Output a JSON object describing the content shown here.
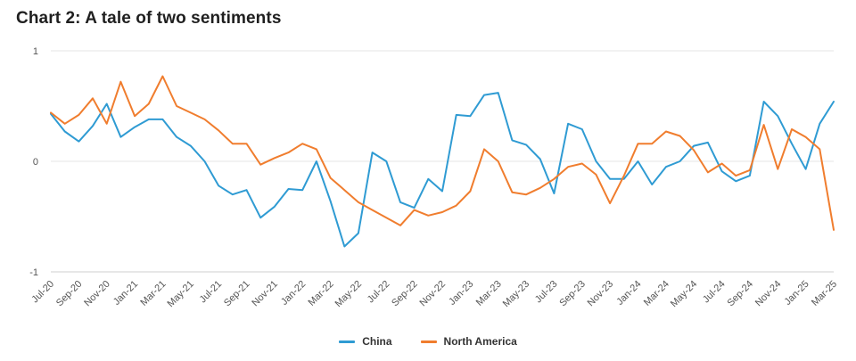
{
  "title": "Chart 2: A tale of two sentiments",
  "chart_data": {
    "type": "line",
    "title": "Chart 2: A tale of two sentiments",
    "xlabel": "",
    "ylabel": "",
    "ylim": [
      -1,
      1
    ],
    "yticks": [
      "1",
      "0",
      "-1"
    ],
    "ytick_values": [
      1,
      0,
      -1
    ],
    "grid": "horizontal",
    "legend_position": "bottom",
    "x": [
      "Jul-20",
      "Aug-20",
      "Sep-20",
      "Oct-20",
      "Nov-20",
      "Dec-20",
      "Jan-21",
      "Feb-21",
      "Mar-21",
      "Apr-21",
      "May-21",
      "Jun-21",
      "Jul-21",
      "Aug-21",
      "Sep-21",
      "Oct-21",
      "Nov-21",
      "Dec-21",
      "Jan-22",
      "Feb-22",
      "Mar-22",
      "Apr-22",
      "May-22",
      "Jun-22",
      "Jul-22",
      "Aug-22",
      "Sep-22",
      "Oct-22",
      "Nov-22",
      "Dec-22",
      "Jan-23",
      "Feb-23",
      "Mar-23",
      "Apr-23",
      "May-23",
      "Jun-23",
      "Jul-23",
      "Aug-23",
      "Sep-23",
      "Oct-23",
      "Nov-23",
      "Dec-23",
      "Jan-24",
      "Feb-24",
      "Mar-24",
      "Apr-24",
      "May-24",
      "Jun-24",
      "Jul-24",
      "Aug-24",
      "Sep-24",
      "Oct-24",
      "Nov-24",
      "Dec-24",
      "Jan-25",
      "Feb-25",
      "Mar-25"
    ],
    "xtick_labels": [
      "Jul-20",
      "Sep-20",
      "Nov-20",
      "Jan-21",
      "Mar-21",
      "May-21",
      "Jul-21",
      "Sep-21",
      "Nov-21",
      "Jan-22",
      "Mar-22",
      "May-22",
      "Jul-22",
      "Sep-22",
      "Nov-22",
      "Jan-23",
      "Mar-23",
      "May-23",
      "Jul-23",
      "Sep-23",
      "Nov-23",
      "Jan-24",
      "Mar-24",
      "May-24",
      "Jul-24",
      "Sep-24",
      "Nov-24",
      "Jan-25",
      "Mar-25"
    ],
    "series": [
      {
        "name": "China",
        "color": "#2f9bd3",
        "values": [
          0.43,
          0.27,
          0.18,
          0.32,
          0.52,
          0.22,
          0.31,
          0.38,
          0.38,
          0.22,
          0.14,
          0.0,
          -0.22,
          -0.3,
          -0.26,
          -0.51,
          -0.41,
          -0.25,
          -0.26,
          0.0,
          -0.36,
          -0.77,
          -0.65,
          0.08,
          0.0,
          -0.37,
          -0.42,
          -0.16,
          -0.27,
          0.42,
          0.41,
          0.6,
          0.62,
          0.19,
          0.15,
          0.02,
          -0.29,
          0.34,
          0.29,
          0.0,
          -0.16,
          -0.16,
          0.0,
          -0.21,
          -0.05,
          0.0,
          0.14,
          0.17,
          -0.09,
          -0.18,
          -0.13,
          0.54,
          0.41,
          0.16,
          -0.07,
          0.34,
          0.54
        ]
      },
      {
        "name": "North America",
        "color": "#f07d2e",
        "values": [
          0.44,
          0.34,
          0.42,
          0.57,
          0.34,
          0.72,
          0.41,
          0.52,
          0.77,
          0.5,
          0.44,
          0.38,
          0.28,
          0.16,
          0.16,
          -0.03,
          0.03,
          0.08,
          0.16,
          0.11,
          -0.15,
          -0.26,
          -0.37,
          -0.44,
          -0.51,
          -0.58,
          -0.44,
          -0.49,
          -0.46,
          -0.4,
          -0.27,
          0.11,
          0.0,
          -0.28,
          -0.3,
          -0.24,
          -0.16,
          -0.05,
          -0.02,
          -0.12,
          -0.38,
          -0.13,
          0.16,
          0.16,
          0.27,
          0.23,
          0.1,
          -0.1,
          -0.02,
          -0.13,
          -0.08,
          0.33,
          -0.07,
          0.29,
          0.22,
          0.11,
          -0.62
        ]
      }
    ]
  },
  "legend": {
    "items": [
      {
        "label": "China",
        "color": "#2f9bd3"
      },
      {
        "label": "North America",
        "color": "#f07d2e"
      }
    ]
  }
}
